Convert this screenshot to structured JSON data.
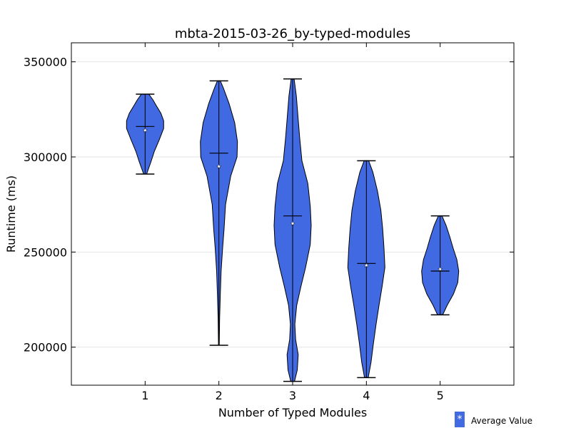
{
  "chart_data": {
    "type": "violin",
    "title": "mbta-2015-03-26_by-typed-modules",
    "xlabel": "Number of Typed Modules",
    "ylabel": "Runtime (ms)",
    "xlim": [
      0,
      6
    ],
    "ylim": [
      180000,
      360000
    ],
    "categories": [
      "1",
      "2",
      "3",
      "4",
      "5"
    ],
    "y_ticks": [
      200000,
      250000,
      300000,
      350000
    ],
    "y_tick_labels": [
      "200000",
      "250000",
      "300000",
      "350000"
    ],
    "grid": "horizontal",
    "fill_color": "#4169e1",
    "legend": {
      "position": "bottom-right",
      "label": "Average Value",
      "marker": "*"
    },
    "violins": [
      {
        "x": 1,
        "min": 291000,
        "max": 333000,
        "median": 316000,
        "mean": 314000,
        "profile": [
          [
            291000,
            0.08
          ],
          [
            297000,
            0.3
          ],
          [
            303000,
            0.5
          ],
          [
            309000,
            0.76
          ],
          [
            315000,
            1.0
          ],
          [
            319000,
            1.0
          ],
          [
            323000,
            0.85
          ],
          [
            327000,
            0.6
          ],
          [
            330000,
            0.42
          ],
          [
            333000,
            0.2
          ]
        ]
      },
      {
        "x": 2,
        "min": 201000,
        "max": 340000,
        "median": 302000,
        "mean": 295000,
        "profile": [
          [
            201000,
            0.02
          ],
          [
            215000,
            0.04
          ],
          [
            228000,
            0.08
          ],
          [
            240000,
            0.12
          ],
          [
            252000,
            0.2
          ],
          [
            262000,
            0.28
          ],
          [
            275000,
            0.36
          ],
          [
            290000,
            0.64
          ],
          [
            300000,
            0.98
          ],
          [
            308000,
            1.0
          ],
          [
            318000,
            0.85
          ],
          [
            328000,
            0.55
          ],
          [
            336000,
            0.25
          ],
          [
            340000,
            0.08
          ]
        ]
      },
      {
        "x": 3,
        "min": 182000,
        "max": 341000,
        "median": 269000,
        "mean": 265000,
        "profile": [
          [
            182000,
            0.1
          ],
          [
            188000,
            0.25
          ],
          [
            196000,
            0.3
          ],
          [
            204000,
            0.16
          ],
          [
            212000,
            0.12
          ],
          [
            222000,
            0.22
          ],
          [
            232000,
            0.45
          ],
          [
            242000,
            0.7
          ],
          [
            254000,
            0.95
          ],
          [
            264000,
            1.0
          ],
          [
            274000,
            0.95
          ],
          [
            286000,
            0.82
          ],
          [
            298000,
            0.5
          ],
          [
            310000,
            0.38
          ],
          [
            322000,
            0.28
          ],
          [
            332000,
            0.2
          ],
          [
            341000,
            0.08
          ]
        ]
      },
      {
        "x": 4,
        "min": 184000,
        "max": 298000,
        "median": 244000,
        "mean": 243000,
        "profile": [
          [
            184000,
            0.1
          ],
          [
            192000,
            0.25
          ],
          [
            202000,
            0.38
          ],
          [
            212000,
            0.52
          ],
          [
            222000,
            0.68
          ],
          [
            232000,
            0.85
          ],
          [
            242000,
            1.0
          ],
          [
            252000,
            0.95
          ],
          [
            262000,
            0.88
          ],
          [
            272000,
            0.78
          ],
          [
            282000,
            0.6
          ],
          [
            292000,
            0.35
          ],
          [
            298000,
            0.12
          ]
        ]
      },
      {
        "x": 5,
        "min": 217000,
        "max": 269000,
        "median": 240000,
        "mean": 241000,
        "profile": [
          [
            217000,
            0.14
          ],
          [
            222000,
            0.38
          ],
          [
            228000,
            0.72
          ],
          [
            234000,
            0.95
          ],
          [
            240000,
            1.0
          ],
          [
            246000,
            0.9
          ],
          [
            252000,
            0.7
          ],
          [
            258000,
            0.52
          ],
          [
            264000,
            0.32
          ],
          [
            269000,
            0.1
          ]
        ]
      }
    ]
  }
}
